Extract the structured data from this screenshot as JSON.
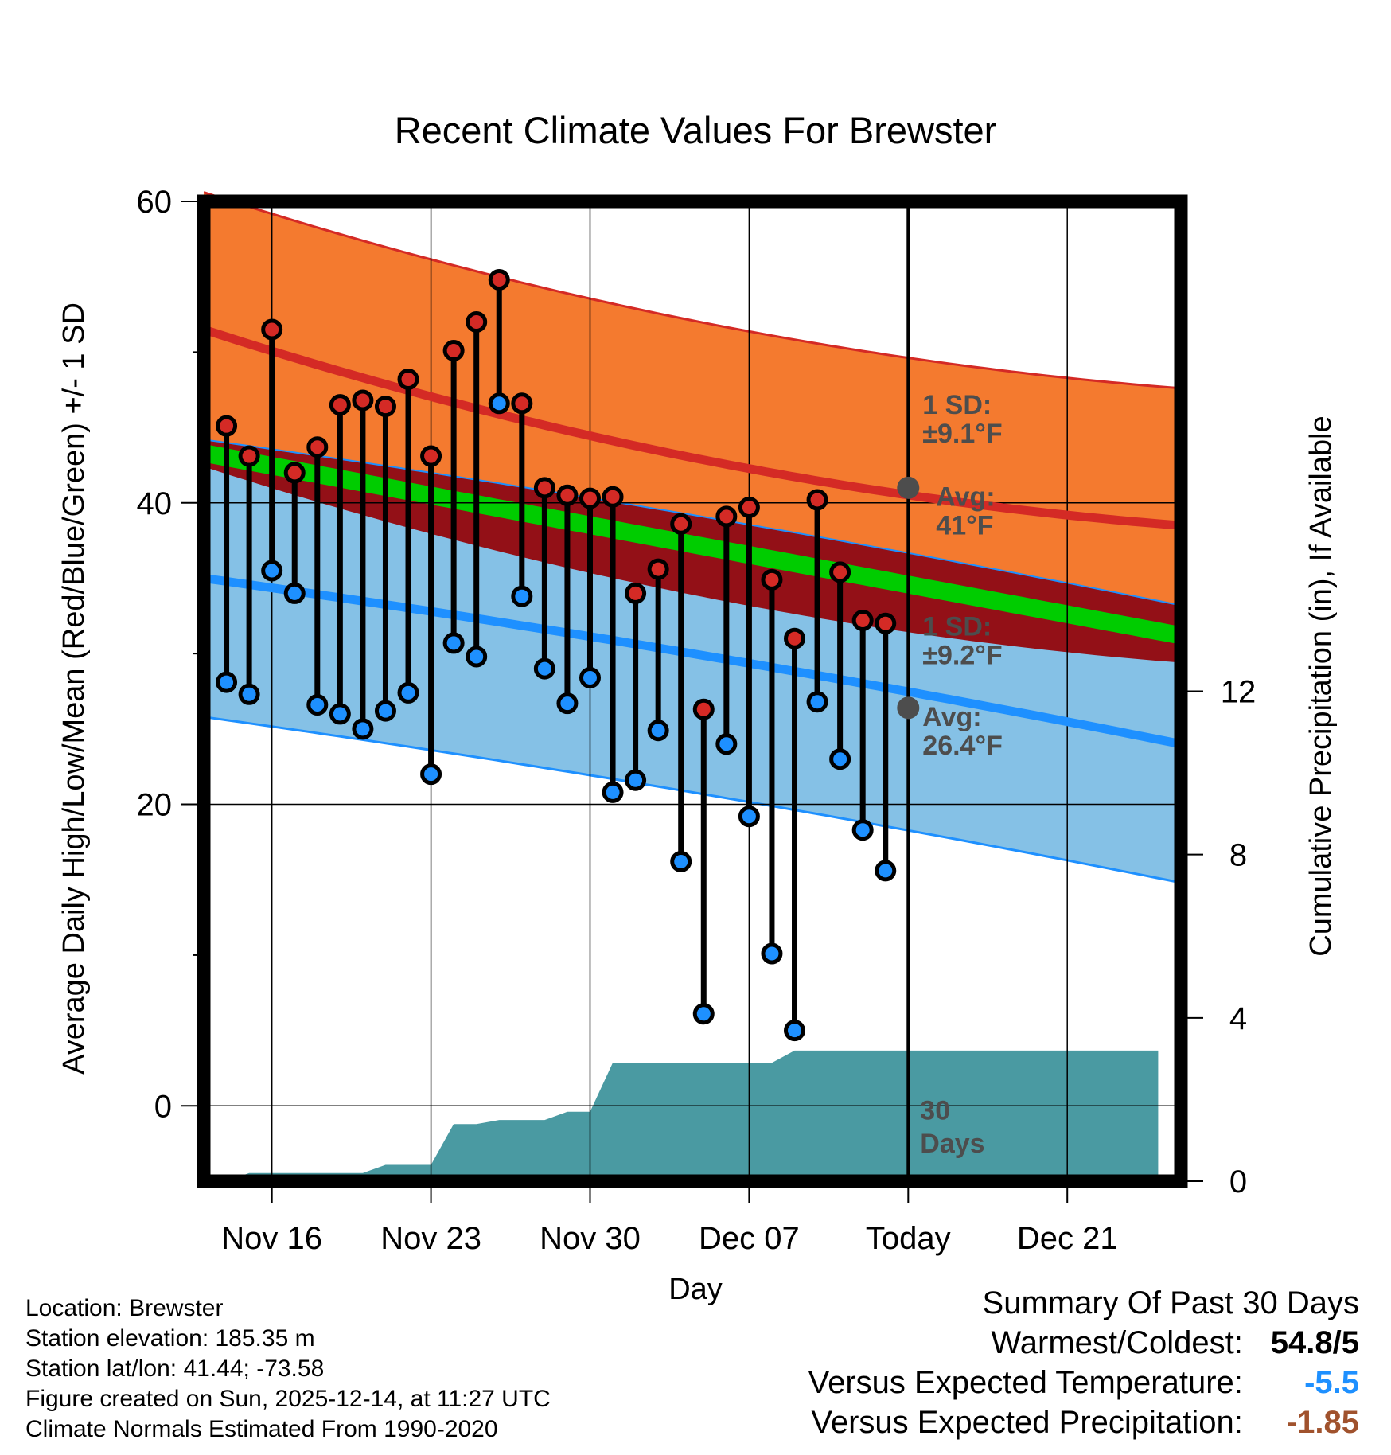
{
  "chart_data": {
    "type": "line",
    "title": "Recent Climate Values For Brewster",
    "xlabel": "Day",
    "ylabel": "Average Daily High/Low/Mean (Red/Blue/Green) +/- 1 SD",
    "y2label": "Cumulative Precipitation (in), If Available",
    "ylim": [
      -5,
      60
    ],
    "y2lim": [
      0,
      24
    ],
    "yticks": [
      0,
      20,
      40,
      60
    ],
    "y2ticks": [
      0,
      4,
      8,
      12
    ],
    "xlim": [
      0,
      43
    ],
    "xticks": [
      {
        "day": 3,
        "label": "Nov 16"
      },
      {
        "day": 10,
        "label": "Nov 23"
      },
      {
        "day": 17,
        "label": "Nov 30"
      },
      {
        "day": 24,
        "label": "Dec 07"
      },
      {
        "day": 31,
        "label": "Today"
      },
      {
        "day": 38,
        "label": "Dec 21"
      }
    ],
    "days": [
      1,
      2,
      3,
      4,
      5,
      6,
      7,
      8,
      9,
      10,
      11,
      12,
      13,
      14,
      15,
      16,
      17,
      18,
      19,
      20,
      21,
      22,
      23,
      24,
      25,
      26,
      27,
      28,
      29,
      30
    ],
    "observed_high": [
      45.1,
      43.1,
      51.5,
      42.0,
      43.7,
      46.5,
      46.8,
      46.4,
      48.2,
      43.1,
      50.1,
      52.0,
      54.8,
      46.6,
      41.0,
      40.5,
      40.3,
      40.4,
      34.0,
      35.6,
      38.6,
      26.3,
      39.1,
      39.7,
      34.9,
      31.0,
      40.2,
      35.4,
      32.2,
      32.0
    ],
    "observed_low": [
      28.1,
      27.3,
      35.5,
      34.0,
      26.6,
      26.0,
      25.0,
      26.2,
      27.4,
      22.0,
      30.7,
      29.8,
      46.6,
      33.8,
      29.0,
      26.7,
      28.4,
      20.8,
      21.6,
      24.9,
      16.2,
      6.1,
      24.0,
      19.2,
      10.1,
      5.0,
      26.8,
      23.0,
      18.3,
      15.6
    ],
    "observed_low_above_normal_high_day": 13,
    "normal_high": {
      "start": 51.5,
      "mid": 43.0,
      "today": 41.0,
      "end": 38.5
    },
    "normal_high_sd": 9.1,
    "normal_low": {
      "start": 35.0,
      "mid": 30.0,
      "today": 26.4,
      "end": 24.0
    },
    "normal_low_sd": 9.2,
    "normal_mean": {
      "start": 43.3,
      "end": 31.2
    },
    "precip_cumulative": {
      "days": [
        0,
        1,
        2,
        3,
        4,
        5,
        6,
        7,
        8,
        9,
        10,
        11,
        12,
        13,
        14,
        15,
        16,
        17,
        18,
        19,
        20,
        21,
        22,
        23,
        24,
        25,
        26,
        27,
        28,
        29,
        30,
        31,
        42
      ],
      "values": [
        0,
        0,
        0.2,
        0.2,
        0.2,
        0.2,
        0.2,
        0.2,
        0.4,
        0.4,
        0.4,
        1.4,
        1.4,
        1.5,
        1.5,
        1.5,
        1.7,
        1.7,
        2.9,
        2.9,
        2.9,
        2.9,
        2.9,
        2.9,
        2.9,
        2.9,
        3.2,
        3.2,
        3.2,
        3.2,
        3.2,
        3.2,
        3.2
      ]
    },
    "annotations": {
      "high_sd_line1": "1 SD:",
      "high_sd_line2": "±9.1°F",
      "high_avg_line1": "Avg:",
      "high_avg_line2": "41°F",
      "low_sd_line1": "1 SD:",
      "low_sd_line2": "±9.2°F",
      "low_avg_line1": "Avg:",
      "low_avg_line2": "26.4°F",
      "window_line1": "30",
      "window_line2": "Days"
    },
    "colors": {
      "high_band": "#f47a2f",
      "low_band": "#85c1e6",
      "high_line": "#d42a25",
      "low_line": "#1e90ff",
      "mean_band": "#00cc00",
      "dark_band": "#931017",
      "precip": "#4a9aa2",
      "high_marker": "#d42a25",
      "low_marker": "#1e90ff",
      "annotation_dot": "#4d4d4d"
    }
  },
  "footer": {
    "location": "Location: Brewster",
    "elevation": "Station elevation: 185.35 m",
    "latlon": "Station lat/lon: 41.44; -73.58",
    "created": "Figure created on Sun, 2025-12-14, at 11:27 UTC",
    "normals": "Climate Normals Estimated From 1990-2020"
  },
  "summary": {
    "heading": "Summary Of Past 30 Days",
    "warmest_coldest_label": "Warmest/Coldest:",
    "warmest_coldest_value": "54.8/5",
    "temp_label": "Versus Expected Temperature:",
    "temp_value": "-5.5",
    "temp_color": "#1e90ff",
    "precip_label": "Versus Expected Precipitation:",
    "precip_value": "-1.85",
    "precip_color": "#a0522d"
  }
}
